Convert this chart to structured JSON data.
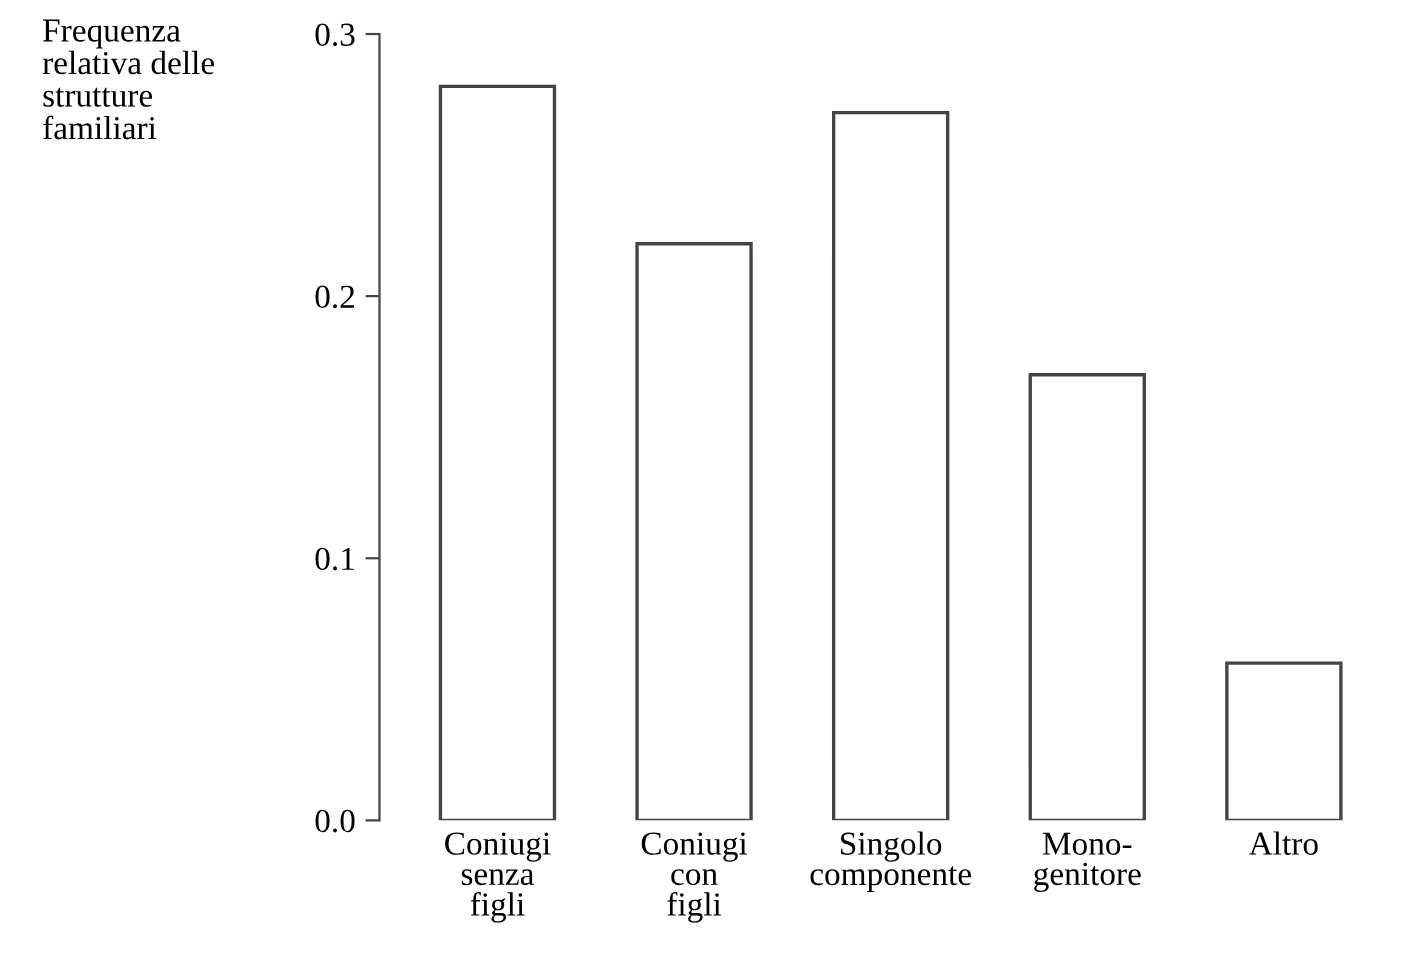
{
  "chart_data": {
    "type": "bar",
    "ylabel": "Frequenza\nrelativa delle\nstrutture\nfamiliari",
    "categories": [
      "Coniugi\nsenza\nfigli",
      "Coniugi\ncon\nfigli",
      "Singolo\ncomponente",
      "Mono-\ngenitore",
      "Altro"
    ],
    "values": [
      0.28,
      0.22,
      0.27,
      0.17,
      0.06
    ],
    "color": "#ffffff",
    "ylim": [
      0,
      0.3
    ],
    "yticks": [
      {
        "value": 0,
        "label": "0.0"
      },
      0.1,
      0.2,
      0.3
    ],
    "grid": false
  }
}
